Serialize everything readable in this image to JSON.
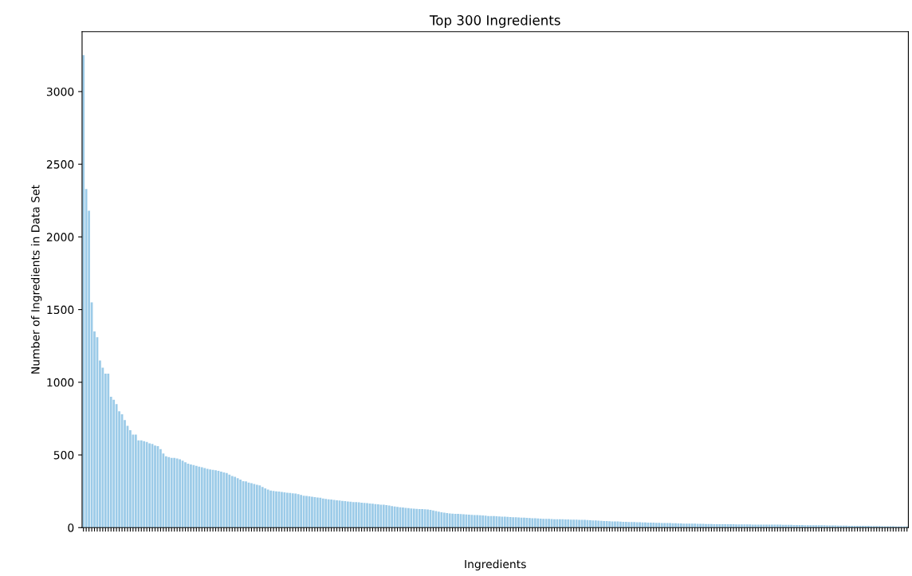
{
  "chart_data": {
    "type": "bar",
    "title": "Top 300 Ingredients",
    "xlabel": "Ingredients",
    "ylabel": "Number of Ingredients in Data Set",
    "categories": [
      null,
      null,
      null,
      null,
      null,
      null,
      null,
      null,
      null,
      null,
      null,
      null,
      null,
      null,
      null,
      null,
      null,
      null,
      null,
      null,
      null,
      null,
      null,
      null,
      null,
      null,
      null,
      null,
      null,
      null,
      null,
      null,
      null,
      null,
      null,
      null,
      null,
      null,
      null,
      null,
      null,
      null,
      null,
      null,
      null,
      null,
      null,
      null,
      null,
      null,
      null,
      null,
      null,
      null,
      null,
      null,
      null,
      null,
      null,
      null,
      null,
      null,
      null,
      null,
      null,
      null,
      null,
      null,
      null,
      null,
      null,
      null,
      null,
      null,
      null,
      null,
      null,
      null,
      null,
      null,
      null,
      null,
      null,
      null,
      null,
      null,
      null,
      null,
      null,
      null,
      null,
      null,
      null,
      null,
      null,
      null,
      null,
      null,
      null,
      null,
      null,
      null,
      null,
      null,
      null,
      null,
      null,
      null,
      null,
      null,
      null,
      null,
      null,
      null,
      null,
      null,
      null,
      null,
      null,
      null,
      null,
      null,
      null,
      null,
      null,
      null,
      null,
      null,
      null,
      null,
      null,
      null,
      null,
      null,
      null,
      null,
      null,
      null,
      null,
      null,
      null,
      null,
      null,
      null,
      null,
      null,
      null,
      null,
      null,
      null,
      null,
      null,
      null,
      null,
      null,
      null,
      null,
      null,
      null,
      null,
      null,
      null,
      null,
      null,
      null,
      null,
      null,
      null,
      null,
      null,
      null,
      null,
      null,
      null,
      null,
      null,
      null,
      null,
      null,
      null,
      null,
      null,
      null,
      null,
      null,
      null,
      null,
      null,
      null,
      null,
      null,
      null,
      null,
      null,
      null,
      null,
      null,
      null,
      null,
      null,
      null,
      null,
      null,
      null,
      null,
      null,
      null,
      null,
      null,
      null,
      null,
      null,
      null,
      null,
      null,
      null,
      null,
      null,
      null,
      null,
      null,
      null,
      null,
      null,
      null,
      null,
      null,
      null,
      null,
      null,
      null,
      null,
      null,
      null,
      null,
      null,
      null,
      null,
      null,
      null,
      null,
      null,
      null,
      null,
      null,
      null,
      null,
      null,
      null,
      null,
      null,
      null,
      null,
      null,
      null,
      null,
      null,
      null,
      null,
      null,
      null,
      null,
      null,
      null,
      null,
      null,
      null,
      null,
      null,
      null,
      null,
      null,
      null,
      null,
      null,
      null,
      null,
      null,
      null,
      null,
      null,
      null,
      null,
      null,
      null,
      null,
      null,
      null,
      null,
      null,
      null,
      null,
      null,
      null,
      null,
      null,
      null,
      null,
      null,
      null
    ],
    "values": [
      3250,
      2330,
      2180,
      1550,
      1350,
      1310,
      1150,
      1100,
      1060,
      1060,
      900,
      880,
      850,
      800,
      780,
      740,
      700,
      670,
      640,
      640,
      600,
      600,
      595,
      590,
      580,
      575,
      565,
      560,
      540,
      510,
      490,
      485,
      480,
      480,
      475,
      470,
      460,
      450,
      440,
      435,
      430,
      425,
      420,
      415,
      410,
      405,
      400,
      398,
      395,
      390,
      385,
      380,
      375,
      365,
      355,
      350,
      340,
      330,
      320,
      318,
      310,
      305,
      300,
      295,
      290,
      280,
      270,
      262,
      255,
      252,
      250,
      248,
      245,
      243,
      240,
      238,
      236,
      234,
      230,
      225,
      220,
      218,
      215,
      212,
      210,
      207,
      205,
      200,
      198,
      195,
      193,
      190,
      188,
      186,
      184,
      182,
      180,
      178,
      176,
      175,
      174,
      172,
      170,
      168,
      166,
      164,
      162,
      160,
      158,
      157,
      155,
      152,
      148,
      145,
      142,
      140,
      138,
      136,
      134,
      132,
      130,
      129,
      128,
      127,
      126,
      125,
      122,
      118,
      114,
      110,
      106,
      103,
      100,
      98,
      96,
      95,
      95,
      93,
      92,
      90,
      89,
      88,
      87,
      86,
      85,
      84,
      82,
      80,
      80,
      79,
      78,
      77,
      76,
      75,
      74,
      73,
      72,
      71,
      70,
      69,
      68,
      67,
      66,
      65,
      64,
      63,
      62,
      61,
      60,
      60,
      59,
      58,
      58,
      57,
      57,
      56,
      56,
      55,
      55,
      55,
      54,
      54,
      53,
      52,
      51,
      50,
      49,
      48,
      47,
      46,
      45,
      44,
      43,
      42,
      42,
      41,
      40,
      40,
      39,
      38,
      38,
      37,
      37,
      36,
      36,
      35,
      35,
      34,
      33,
      33,
      32,
      32,
      31,
      31,
      30,
      30,
      29,
      29,
      28,
      28,
      27,
      27,
      27,
      26,
      26,
      26,
      25,
      25,
      25,
      24,
      24,
      24,
      24,
      23,
      23,
      23,
      23,
      22,
      22,
      22,
      22,
      22,
      22,
      21,
      21,
      21,
      21,
      21,
      21,
      20,
      20,
      20,
      20,
      20,
      19,
      19,
      19,
      19,
      18,
      18,
      18,
      18,
      17,
      17,
      17,
      17,
      16,
      16,
      16,
      16,
      15,
      15,
      15,
      15,
      14,
      14,
      14,
      14,
      13,
      13,
      13,
      13,
      12,
      12,
      12,
      12,
      11,
      11,
      11,
      11,
      10,
      10,
      10,
      10,
      10,
      9,
      9,
      9,
      9,
      8
    ],
    "color": "#9ccbe8",
    "ylim": [
      0,
      3412
    ],
    "yticks": [
      0,
      500,
      1000,
      1500,
      2000,
      2500,
      3000
    ],
    "tick_labels": "y",
    "grid": false,
    "legend": false
  }
}
